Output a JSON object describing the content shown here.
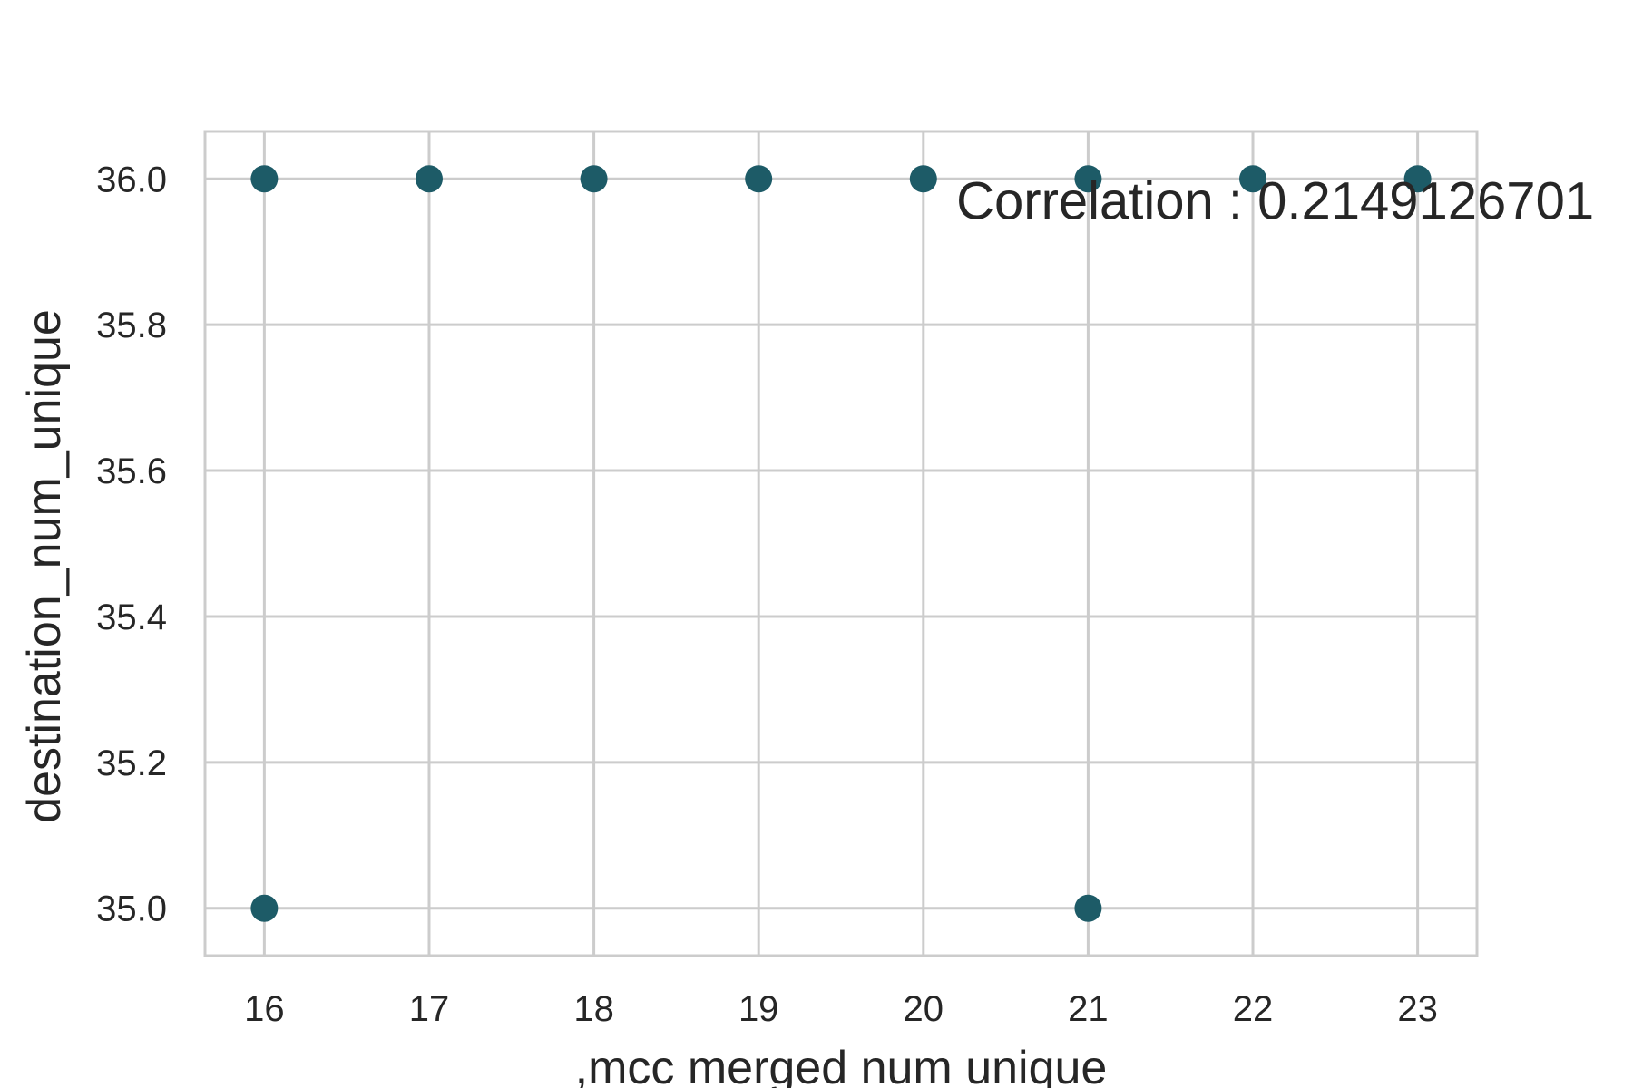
{
  "chart_data": {
    "type": "scatter",
    "title": "",
    "xlabel": ",mcc  merged  num  unique",
    "ylabel": "destination_num_unique",
    "xlim": [
      15.64,
      23.36
    ],
    "ylim": [
      34.935,
      36.065
    ],
    "x_ticks": [
      16,
      17,
      18,
      19,
      20,
      21,
      22,
      23
    ],
    "y_ticks": [
      35.0,
      35.2,
      35.4,
      35.6,
      35.8,
      36.0
    ],
    "y_tick_labels": [
      "35.0",
      "35.2",
      "35.4",
      "35.6",
      "35.8",
      "36.0"
    ],
    "grid": true,
    "legend": "none",
    "point_color": "#1d5b67",
    "grid_color": "#cccccc",
    "points": [
      {
        "x": 16,
        "y": 36
      },
      {
        "x": 17,
        "y": 36
      },
      {
        "x": 18,
        "y": 36
      },
      {
        "x": 19,
        "y": 36
      },
      {
        "x": 20,
        "y": 36
      },
      {
        "x": 21,
        "y": 36
      },
      {
        "x": 22,
        "y": 36
      },
      {
        "x": 23,
        "y": 36
      },
      {
        "x": 16,
        "y": 35
      },
      {
        "x": 21,
        "y": 35
      }
    ],
    "annotation": {
      "text": "Correlation : 0.2149126701",
      "x": 20.2,
      "y": 35.97
    }
  }
}
